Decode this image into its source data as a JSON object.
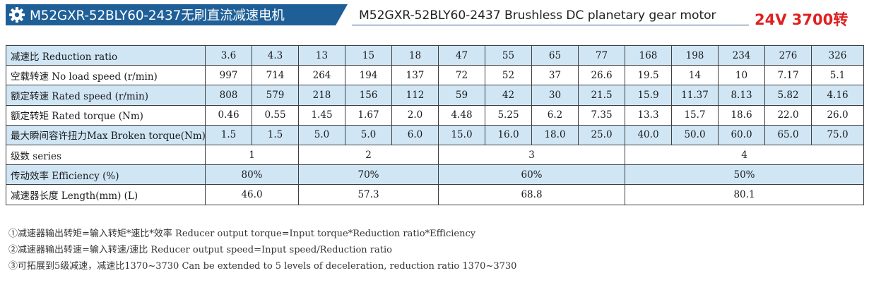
{
  "header": {
    "title_cn": "M52GXR-52BLY60-2437无刷直流减速电机",
    "title_en": "M52GXR-52BLY60-2437 Brushless DC planetary gear motor",
    "voltage": "24V 3700转",
    "icon": "gear-icon"
  },
  "table": {
    "ratio_row": {
      "label": "减速比  Reduction ratio",
      "values": [
        "3.6",
        "4.3",
        "13",
        "15",
        "18",
        "47",
        "55",
        "65",
        "77",
        "168",
        "198",
        "234",
        "276",
        "326"
      ]
    },
    "noload_row": {
      "label": "空载转速 No load speed (r/min)",
      "values": [
        "997",
        "714",
        "264",
        "194",
        "137",
        "72",
        "52",
        "37",
        "26.6",
        "19.5",
        "14",
        "10",
        "7.17",
        "5.1"
      ]
    },
    "rated_speed_row": {
      "label": "额定转速 Rated speed (r/min)",
      "values": [
        "808",
        "579",
        "218",
        "156",
        "112",
        "59",
        "42",
        "30",
        "21.5",
        "15.9",
        "11.37",
        "8.13",
        "5.82",
        "4.16"
      ]
    },
    "rated_torque_row": {
      "label": "额定转矩 Rated torque (Nm)",
      "values": [
        "0.46",
        "0.55",
        "1.45",
        "1.67",
        "2.0",
        "4.48",
        "5.25",
        "6.2",
        "7.35",
        "13.3",
        "15.7",
        "18.6",
        "22.0",
        "26.0"
      ]
    },
    "broken_torque_row": {
      "label": "最大瞬间容许扭力Max Broken torque(Nm)",
      "values": [
        "1.5",
        "1.5",
        "5.0",
        "5.0",
        "6.0",
        "15.0",
        "16.0",
        "18.0",
        "25.0",
        "40.0",
        "50.0",
        "60.0",
        "65.0",
        "75.0"
      ]
    },
    "series_row": {
      "label": "级数 series",
      "values": [
        "1",
        "2",
        "3",
        "4"
      ]
    },
    "efficiency_row": {
      "label": "传动效率 Efficiency (%)",
      "values": [
        "80%",
        "70%",
        "60%",
        "50%"
      ]
    },
    "length_row": {
      "label": "减速器长度 Length(mm) (L)",
      "values": [
        "46.0",
        "57.3",
        "68.8",
        "80.1"
      ]
    }
  },
  "notes": [
    "①减速器输出转矩=输入转矩*速比*效率  Reducer output torque=Input torque*Reduction ratio*Efficiency",
    "②减速器输出转速=输入转速/速比  Reducer output speed=Input speed/Reduction ratio",
    "③可拓展到5级减速，减速比1370~3730  Can be extended to 5 levels of deceleration, reduction ratio 1370~3730"
  ],
  "colors": {
    "title_bar": "#1f5f98",
    "row_highlight": "#d0e6f5",
    "voltage_red": "#e02020",
    "border": "#3f3f3f"
  }
}
